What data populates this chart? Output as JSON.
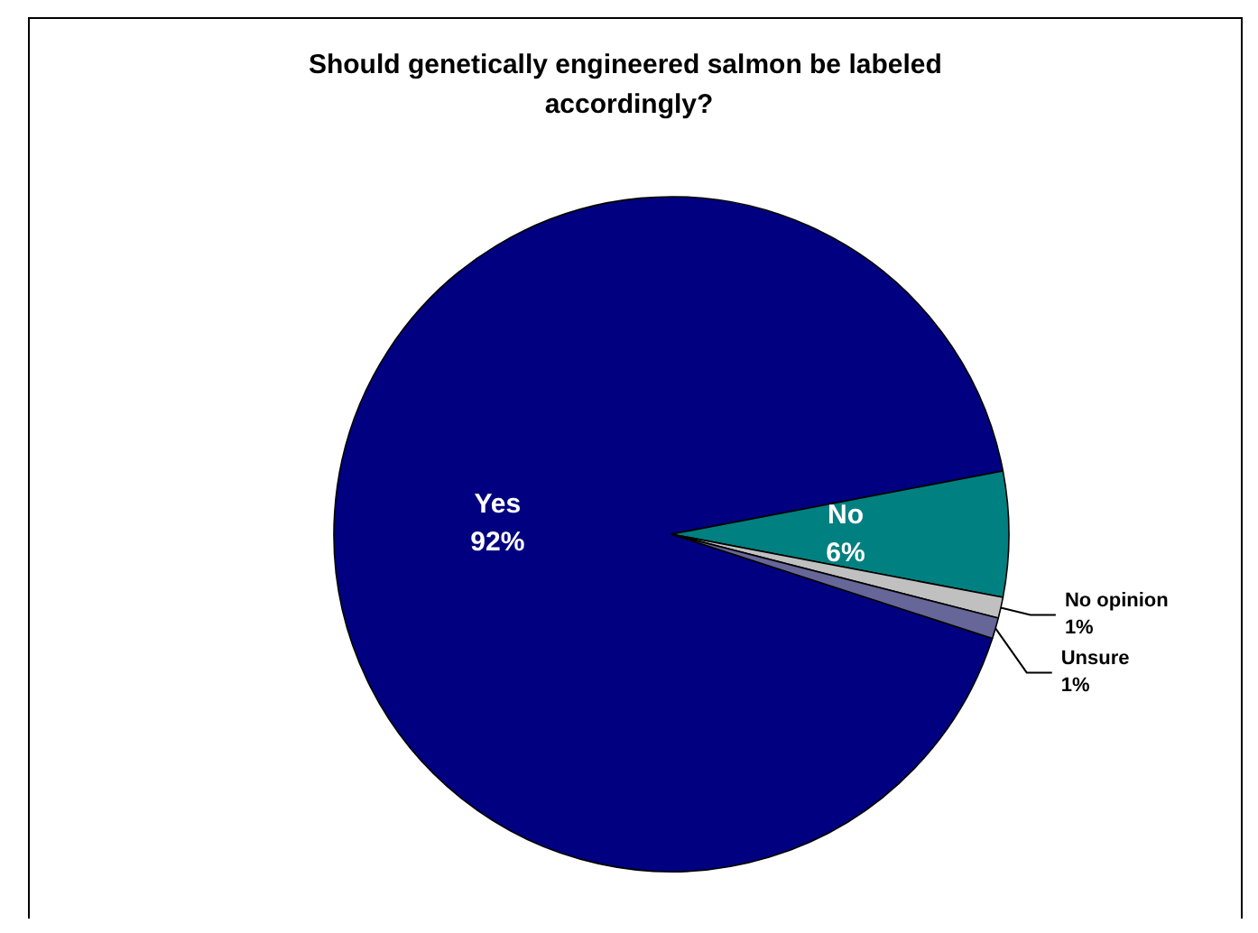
{
  "chart_data": {
    "type": "pie",
    "title": "Should genetically engineered salmon be labeled accordingly?",
    "categories": [
      "Yes",
      "No",
      "No opinion",
      "Unsure"
    ],
    "values": [
      92,
      6,
      1,
      1
    ],
    "colors": [
      "#000080",
      "#008080",
      "#c0c0c0",
      "#666699"
    ],
    "value_labels": [
      "92%",
      "6%",
      "1%",
      "1%"
    ],
    "legend": false
  }
}
